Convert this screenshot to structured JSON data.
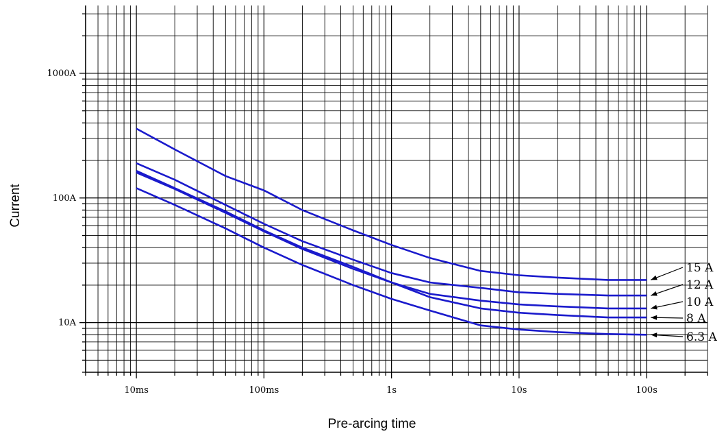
{
  "chart_data": {
    "type": "line",
    "title": "",
    "xlabel": "Pre-arcing time",
    "ylabel": "Current",
    "x_scale": "log",
    "y_scale": "log",
    "xlim": [
      "4ms",
      "300s"
    ],
    "ylim": [
      "4A",
      "3500A"
    ],
    "x_ticks": [
      {
        "value_s": 0.01,
        "label": "10ms"
      },
      {
        "value_s": 0.1,
        "label": "100ms"
      },
      {
        "value_s": 1,
        "label": "1s"
      },
      {
        "value_s": 10,
        "label": "10s"
      },
      {
        "value_s": 100,
        "label": "100s"
      }
    ],
    "y_ticks": [
      {
        "value_a": 10,
        "label": "10A"
      },
      {
        "value_a": 100,
        "label": "100A"
      },
      {
        "value_a": 1000,
        "label": "1000A"
      }
    ],
    "grid": true,
    "x_unit": "s",
    "y_unit": "A",
    "series": [
      {
        "name": "15 A",
        "color": "#1a1acc",
        "points": [
          [
            0.01,
            360
          ],
          [
            0.02,
            245
          ],
          [
            0.05,
            150
          ],
          [
            0.1,
            115
          ],
          [
            0.2,
            80
          ],
          [
            0.5,
            55
          ],
          [
            1,
            42
          ],
          [
            2,
            33
          ],
          [
            5,
            26
          ],
          [
            10,
            24
          ],
          [
            20,
            23
          ],
          [
            50,
            22
          ],
          [
            100,
            22
          ]
        ]
      },
      {
        "name": "12 A",
        "color": "#1a1acc",
        "points": [
          [
            0.01,
            190
          ],
          [
            0.02,
            140
          ],
          [
            0.05,
            88
          ],
          [
            0.1,
            62
          ],
          [
            0.2,
            45
          ],
          [
            0.5,
            32
          ],
          [
            1,
            25
          ],
          [
            2,
            21
          ],
          [
            5,
            19
          ],
          [
            10,
            17.5
          ],
          [
            20,
            17
          ],
          [
            50,
            16.5
          ],
          [
            100,
            16.5
          ]
        ]
      },
      {
        "name": "10 A",
        "color": "#1a1acc",
        "points": [
          [
            0.01,
            165
          ],
          [
            0.02,
            120
          ],
          [
            0.05,
            78
          ],
          [
            0.1,
            55
          ],
          [
            0.2,
            40
          ],
          [
            0.5,
            28
          ],
          [
            1,
            21
          ],
          [
            2,
            17
          ],
          [
            5,
            15
          ],
          [
            10,
            14
          ],
          [
            20,
            13.5
          ],
          [
            50,
            13
          ],
          [
            100,
            13
          ]
        ]
      },
      {
        "name": "8 A",
        "color": "#1a1acc",
        "points": [
          [
            0.01,
            160
          ],
          [
            0.02,
            118
          ],
          [
            0.05,
            76
          ],
          [
            0.1,
            54
          ],
          [
            0.2,
            39
          ],
          [
            0.5,
            27
          ],
          [
            1,
            21
          ],
          [
            2,
            16
          ],
          [
            5,
            13
          ],
          [
            10,
            12
          ],
          [
            20,
            11.5
          ],
          [
            50,
            11
          ],
          [
            100,
            11
          ]
        ]
      },
      {
        "name": "6.3 A",
        "color": "#1a1acc",
        "points": [
          [
            0.01,
            120
          ],
          [
            0.02,
            88
          ],
          [
            0.05,
            57
          ],
          [
            0.1,
            40
          ],
          [
            0.2,
            29
          ],
          [
            0.5,
            20
          ],
          [
            1,
            15.5
          ],
          [
            2,
            12.5
          ],
          [
            5,
            9.5
          ],
          [
            10,
            8.8
          ],
          [
            20,
            8.4
          ],
          [
            50,
            8.1
          ],
          [
            100,
            8
          ]
        ]
      }
    ]
  }
}
